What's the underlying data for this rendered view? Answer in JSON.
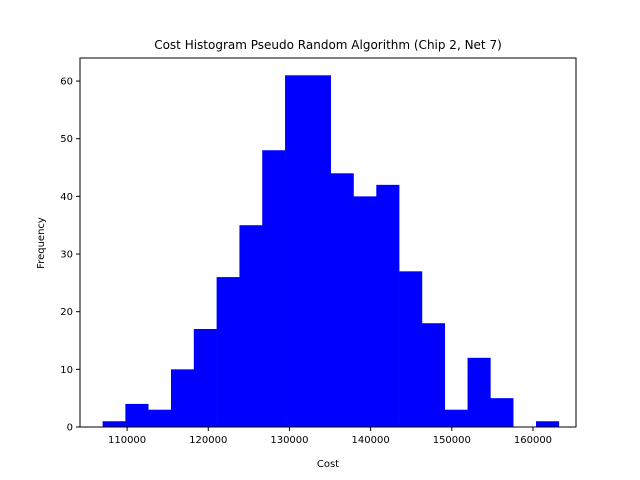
{
  "chart_data": {
    "type": "bar",
    "title": "Cost Histogram Pseudo Random Algorithm (Chip 2, Net 7)",
    "xlabel": "Cost",
    "ylabel": "Frequency",
    "bar_color": "#0000ff",
    "xlim": [
      104200,
      165300
    ],
    "ylim": [
      0,
      64
    ],
    "x_ticks": [
      110000,
      120000,
      130000,
      140000,
      150000,
      160000
    ],
    "y_ticks": [
      0,
      10,
      20,
      30,
      40,
      50,
      60
    ],
    "bin_edges": [
      106980,
      109790,
      112600,
      115410,
      118220,
      121030,
      123840,
      126650,
      129460,
      132270,
      135080,
      137890,
      140700,
      143510,
      146320,
      149130,
      151940,
      154750,
      157560,
      160370,
      163180
    ],
    "counts": [
      1,
      4,
      3,
      10,
      17,
      26,
      35,
      48,
      61,
      61,
      44,
      40,
      42,
      27,
      18,
      3,
      12,
      5,
      0,
      1
    ],
    "grid": false
  }
}
